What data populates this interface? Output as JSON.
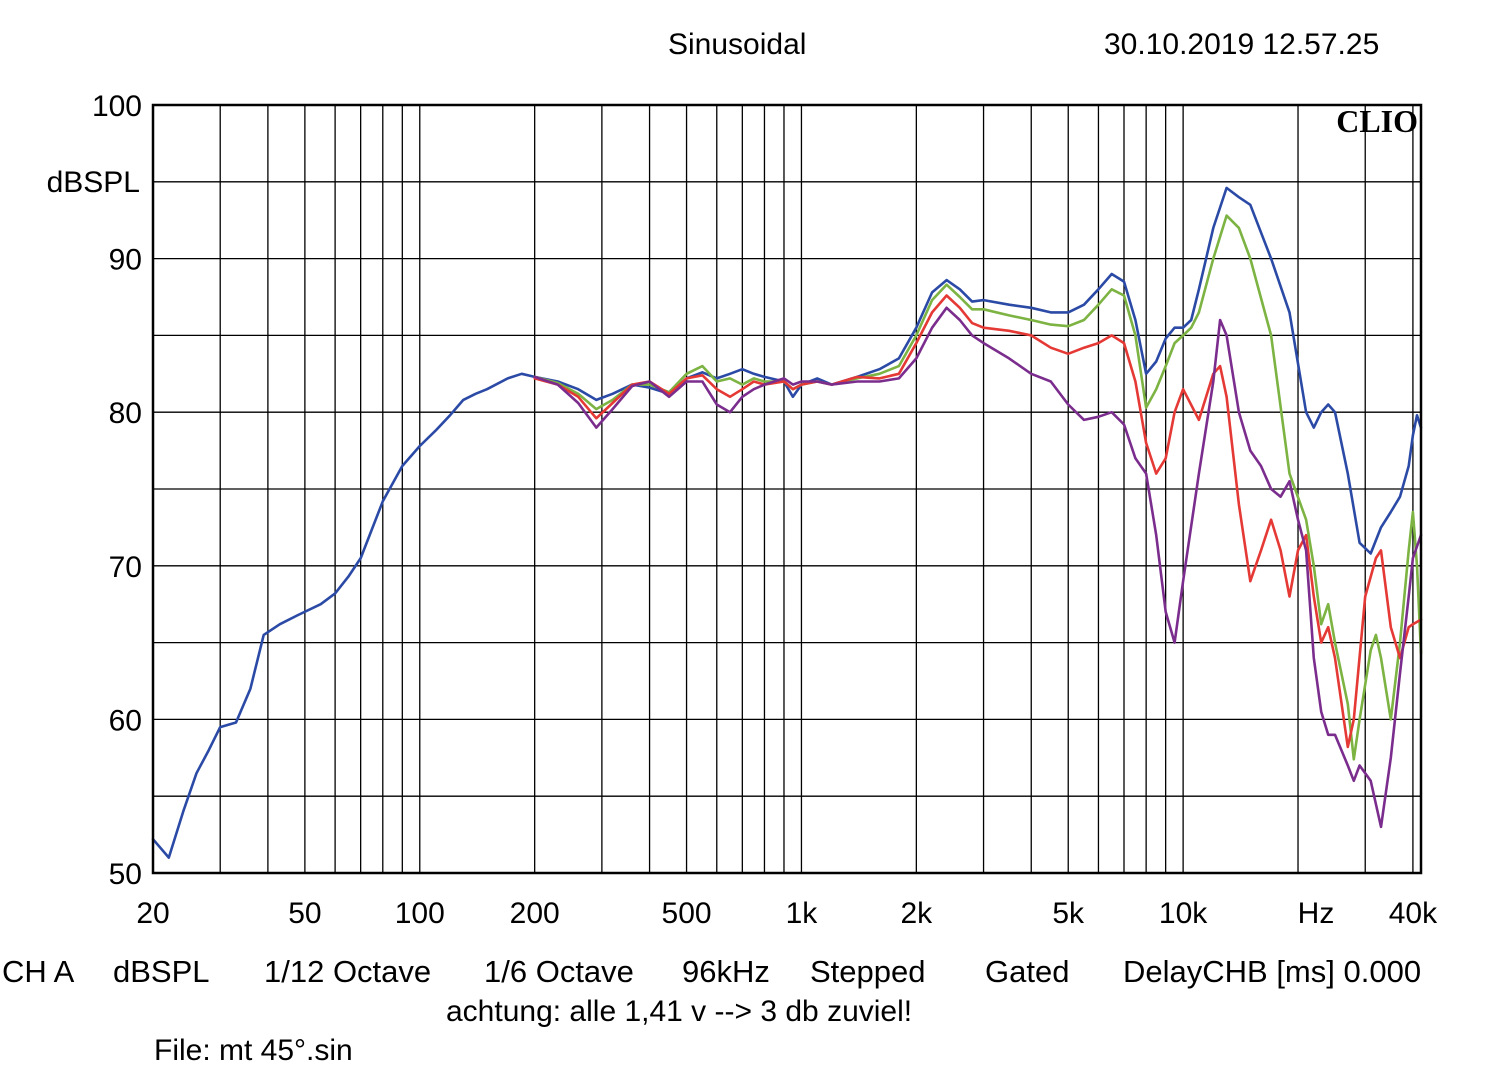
{
  "header": {
    "title": "Sinusoidal",
    "timestamp": "30.10.2019 12.57.25"
  },
  "brand": "CLIO",
  "footer": {
    "items": [
      "CH A",
      "dBSPL",
      "1/12 Octave",
      "1/6 Octave",
      "96kHz",
      "Stepped",
      "Gated",
      "DelayCHB [ms] 0.000"
    ],
    "note": "achtung: alle 1,41 v --> 3 db zuviel!",
    "file": "File: mt 45°.sin"
  },
  "chart_data": {
    "type": "line",
    "x_scale": "log",
    "xlim": [
      20,
      42000
    ],
    "ylim": [
      50,
      100
    ],
    "ylabel": "dBSPL",
    "xlabel": "Hz",
    "grid": true,
    "y_ticks": [
      {
        "value": 100,
        "label": "100"
      },
      {
        "value": 90,
        "label": "90"
      },
      {
        "value": 80,
        "label": "80"
      },
      {
        "value": 70,
        "label": "70"
      },
      {
        "value": 60,
        "label": "60"
      },
      {
        "value": 50,
        "label": "50"
      }
    ],
    "x_ticks": [
      {
        "value": 20,
        "label": "20"
      },
      {
        "value": 50,
        "label": "50"
      },
      {
        "value": 100,
        "label": "100"
      },
      {
        "value": 200,
        "label": "200"
      },
      {
        "value": 500,
        "label": "500"
      },
      {
        "value": 1000,
        "label": "1k"
      },
      {
        "value": 2000,
        "label": "2k"
      },
      {
        "value": 5000,
        "label": "5k"
      },
      {
        "value": 10000,
        "label": "10k"
      },
      {
        "value": 40000,
        "label": "40k"
      }
    ],
    "series": [
      {
        "color": "#2b4aa6",
        "points": [
          [
            20,
            52.2
          ],
          [
            22,
            51
          ],
          [
            24,
            54
          ],
          [
            26,
            56.5
          ],
          [
            28,
            58
          ],
          [
            30,
            59.5
          ],
          [
            33,
            59.8
          ],
          [
            36,
            62
          ],
          [
            39,
            65.5
          ],
          [
            43,
            66.2
          ],
          [
            48,
            66.8
          ],
          [
            55,
            67.5
          ],
          [
            60,
            68.2
          ],
          [
            65,
            69.3
          ],
          [
            70,
            70.5
          ],
          [
            80,
            74.2
          ],
          [
            90,
            76.5
          ],
          [
            100,
            77.8
          ],
          [
            110,
            78.8
          ],
          [
            120,
            79.8
          ],
          [
            130,
            80.8
          ],
          [
            140,
            81.2
          ],
          [
            150,
            81.5
          ],
          [
            170,
            82.2
          ],
          [
            185,
            82.5
          ],
          [
            200,
            82.3
          ],
          [
            230,
            82
          ],
          [
            260,
            81.5
          ],
          [
            290,
            80.8
          ],
          [
            320,
            81.2
          ],
          [
            360,
            81.8
          ],
          [
            400,
            81.6
          ],
          [
            450,
            81.2
          ],
          [
            500,
            82.2
          ],
          [
            550,
            82.6
          ],
          [
            600,
            82.2
          ],
          [
            650,
            82.5
          ],
          [
            700,
            82.8
          ],
          [
            750,
            82.5
          ],
          [
            800,
            82.3
          ],
          [
            900,
            82
          ],
          [
            950,
            81
          ],
          [
            1000,
            81.8
          ],
          [
            1100,
            82.2
          ],
          [
            1200,
            81.8
          ],
          [
            1400,
            82.3
          ],
          [
            1600,
            82.8
          ],
          [
            1800,
            83.5
          ],
          [
            2000,
            85.5
          ],
          [
            2200,
            87.8
          ],
          [
            2400,
            88.6
          ],
          [
            2600,
            88
          ],
          [
            2800,
            87.2
          ],
          [
            3000,
            87.3
          ],
          [
            3500,
            87
          ],
          [
            4000,
            86.8
          ],
          [
            4500,
            86.5
          ],
          [
            5000,
            86.5
          ],
          [
            5500,
            87
          ],
          [
            6000,
            88
          ],
          [
            6500,
            89
          ],
          [
            7000,
            88.5
          ],
          [
            7500,
            86
          ],
          [
            8000,
            82.5
          ],
          [
            8500,
            83.3
          ],
          [
            9000,
            84.8
          ],
          [
            9500,
            85.5
          ],
          [
            10000,
            85.5
          ],
          [
            10500,
            86
          ],
          [
            11000,
            88
          ],
          [
            12000,
            92
          ],
          [
            13000,
            94.6
          ],
          [
            14000,
            94
          ],
          [
            15000,
            93.5
          ],
          [
            17000,
            90
          ],
          [
            19000,
            86.5
          ],
          [
            21000,
            80
          ],
          [
            22000,
            79
          ],
          [
            23000,
            80
          ],
          [
            24000,
            80.5
          ],
          [
            25000,
            80
          ],
          [
            27000,
            76
          ],
          [
            29000,
            71.5
          ],
          [
            31000,
            70.8
          ],
          [
            33000,
            72.5
          ],
          [
            35000,
            73.5
          ],
          [
            37000,
            74.5
          ],
          [
            39000,
            76.5
          ],
          [
            40000,
            78.5
          ],
          [
            41000,
            79.8
          ],
          [
            42000,
            79
          ]
        ]
      },
      {
        "color": "#7cb342",
        "points": [
          [
            200,
            82.3
          ],
          [
            230,
            81.9
          ],
          [
            260,
            81.2
          ],
          [
            290,
            80.2
          ],
          [
            320,
            80.8
          ],
          [
            360,
            81.8
          ],
          [
            400,
            81.8
          ],
          [
            450,
            81.3
          ],
          [
            500,
            82.5
          ],
          [
            550,
            83
          ],
          [
            600,
            82
          ],
          [
            650,
            82.2
          ],
          [
            700,
            81.8
          ],
          [
            750,
            82.2
          ],
          [
            800,
            82
          ],
          [
            900,
            82
          ],
          [
            950,
            81.5
          ],
          [
            1000,
            81.8
          ],
          [
            1100,
            82
          ],
          [
            1200,
            81.8
          ],
          [
            1400,
            82.2
          ],
          [
            1600,
            82.5
          ],
          [
            1800,
            83
          ],
          [
            2000,
            85
          ],
          [
            2200,
            87.3
          ],
          [
            2400,
            88.3
          ],
          [
            2600,
            87.5
          ],
          [
            2800,
            86.7
          ],
          [
            3000,
            86.7
          ],
          [
            3500,
            86.3
          ],
          [
            4000,
            86
          ],
          [
            4500,
            85.7
          ],
          [
            5000,
            85.6
          ],
          [
            5500,
            86
          ],
          [
            6000,
            87
          ],
          [
            6500,
            88
          ],
          [
            7000,
            87.6
          ],
          [
            7500,
            85
          ],
          [
            8000,
            80.3
          ],
          [
            8500,
            81.5
          ],
          [
            9000,
            83
          ],
          [
            9500,
            84.5
          ],
          [
            10000,
            85
          ],
          [
            10500,
            85.5
          ],
          [
            11000,
            86.5
          ],
          [
            12000,
            90
          ],
          [
            13000,
            92.8
          ],
          [
            14000,
            92
          ],
          [
            15000,
            90
          ],
          [
            17000,
            85
          ],
          [
            19000,
            76
          ],
          [
            21000,
            73
          ],
          [
            22000,
            70
          ],
          [
            23000,
            66.2
          ],
          [
            24000,
            67.5
          ],
          [
            25000,
            65
          ],
          [
            27000,
            61
          ],
          [
            28000,
            57.4
          ],
          [
            29000,
            60
          ],
          [
            31000,
            64.5
          ],
          [
            32000,
            65.5
          ],
          [
            33000,
            64
          ],
          [
            35000,
            60
          ],
          [
            37000,
            65
          ],
          [
            39000,
            71
          ],
          [
            40000,
            73.5
          ],
          [
            41000,
            70
          ],
          [
            42000,
            64.3
          ]
        ]
      },
      {
        "color": "#e53935",
        "points": [
          [
            200,
            82.2
          ],
          [
            230,
            81.8
          ],
          [
            260,
            81
          ],
          [
            290,
            79.6
          ],
          [
            320,
            80.6
          ],
          [
            360,
            81.8
          ],
          [
            400,
            82
          ],
          [
            450,
            81.2
          ],
          [
            500,
            82.2
          ],
          [
            550,
            82.4
          ],
          [
            600,
            81.5
          ],
          [
            650,
            81
          ],
          [
            700,
            81.5
          ],
          [
            750,
            82
          ],
          [
            800,
            81.8
          ],
          [
            900,
            82
          ],
          [
            950,
            81.5
          ],
          [
            1000,
            81.8
          ],
          [
            1100,
            82
          ],
          [
            1200,
            81.8
          ],
          [
            1400,
            82.3
          ],
          [
            1600,
            82.2
          ],
          [
            1800,
            82.5
          ],
          [
            2000,
            84.5
          ],
          [
            2200,
            86.5
          ],
          [
            2400,
            87.6
          ],
          [
            2600,
            86.8
          ],
          [
            2800,
            85.8
          ],
          [
            3000,
            85.5
          ],
          [
            3500,
            85.3
          ],
          [
            4000,
            85
          ],
          [
            4500,
            84.2
          ],
          [
            5000,
            83.8
          ],
          [
            5500,
            84.2
          ],
          [
            6000,
            84.5
          ],
          [
            6500,
            85
          ],
          [
            7000,
            84.5
          ],
          [
            7500,
            82
          ],
          [
            8000,
            78
          ],
          [
            8500,
            76
          ],
          [
            9000,
            77
          ],
          [
            9500,
            80
          ],
          [
            10000,
            81.5
          ],
          [
            11000,
            79.5
          ],
          [
            12000,
            82.5
          ],
          [
            12500,
            83
          ],
          [
            13000,
            81
          ],
          [
            14000,
            74
          ],
          [
            15000,
            69
          ],
          [
            16000,
            71
          ],
          [
            17000,
            73
          ],
          [
            18000,
            71
          ],
          [
            19000,
            68
          ],
          [
            20000,
            71
          ],
          [
            21000,
            72
          ],
          [
            22000,
            68
          ],
          [
            23000,
            65
          ],
          [
            24000,
            66
          ],
          [
            25000,
            64
          ],
          [
            27000,
            58.2
          ],
          [
            28000,
            60
          ],
          [
            30000,
            68
          ],
          [
            32000,
            70.5
          ],
          [
            33000,
            71
          ],
          [
            35000,
            66
          ],
          [
            37000,
            64
          ],
          [
            39000,
            66
          ],
          [
            40000,
            66.2
          ],
          [
            42000,
            66.5
          ]
        ]
      },
      {
        "color": "#7b2d8e",
        "points": [
          [
            200,
            82.3
          ],
          [
            230,
            81.8
          ],
          [
            260,
            80.6
          ],
          [
            290,
            79
          ],
          [
            320,
            80.2
          ],
          [
            360,
            81.7
          ],
          [
            400,
            82
          ],
          [
            450,
            81
          ],
          [
            500,
            82
          ],
          [
            550,
            82
          ],
          [
            600,
            80.5
          ],
          [
            650,
            80
          ],
          [
            700,
            81
          ],
          [
            750,
            81.5
          ],
          [
            800,
            81.8
          ],
          [
            900,
            82.2
          ],
          [
            950,
            81.8
          ],
          [
            1000,
            82
          ],
          [
            1100,
            82
          ],
          [
            1200,
            81.8
          ],
          [
            1400,
            82
          ],
          [
            1600,
            82
          ],
          [
            1800,
            82.2
          ],
          [
            2000,
            83.5
          ],
          [
            2200,
            85.5
          ],
          [
            2400,
            86.8
          ],
          [
            2600,
            86
          ],
          [
            2800,
            85
          ],
          [
            3000,
            84.5
          ],
          [
            3500,
            83.5
          ],
          [
            4000,
            82.5
          ],
          [
            4500,
            82
          ],
          [
            5000,
            80.5
          ],
          [
            5500,
            79.5
          ],
          [
            6000,
            79.7
          ],
          [
            6500,
            80
          ],
          [
            7000,
            79.2
          ],
          [
            7500,
            77
          ],
          [
            8000,
            76
          ],
          [
            8500,
            72
          ],
          [
            9000,
            67
          ],
          [
            9500,
            65
          ],
          [
            10000,
            69
          ],
          [
            11000,
            76
          ],
          [
            12000,
            82
          ],
          [
            12500,
            86
          ],
          [
            13000,
            85
          ],
          [
            14000,
            80
          ],
          [
            15000,
            77.5
          ],
          [
            16000,
            76.5
          ],
          [
            17000,
            75
          ],
          [
            18000,
            74.5
          ],
          [
            19000,
            75.5
          ],
          [
            20000,
            73
          ],
          [
            21000,
            71
          ],
          [
            22000,
            64
          ],
          [
            23000,
            60.5
          ],
          [
            24000,
            59
          ],
          [
            25000,
            59
          ],
          [
            27000,
            57
          ],
          [
            28000,
            56
          ],
          [
            29000,
            57
          ],
          [
            31000,
            56
          ],
          [
            33000,
            53
          ],
          [
            35000,
            57.5
          ],
          [
            37000,
            63
          ],
          [
            39000,
            68
          ],
          [
            40000,
            70.5
          ],
          [
            42000,
            72
          ]
        ]
      }
    ]
  }
}
